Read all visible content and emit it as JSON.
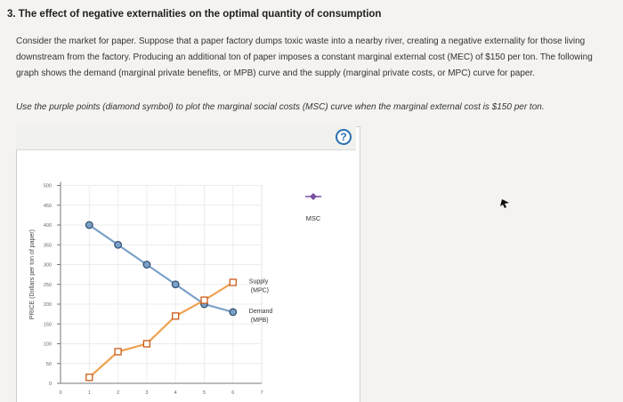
{
  "question": {
    "title": "3. The effect of negative externalities on the optimal quantity of consumption",
    "paragraph": "Consider the market for paper. Suppose that a paper factory dumps toxic waste into a nearby river, creating a negative externality for those living downstream from the factory. Producing an additional ton of paper imposes a constant marginal external cost (MEC) of $150 per ton. The following graph shows the demand (marginal private benefits, or MPB) curve and the supply (marginal private costs, or MPC) curve for paper.",
    "instruction": "Use the purple points (diamond symbol) to plot the marginal social costs (MSC) curve when the marginal external cost is $150 per ton."
  },
  "help_label": "?",
  "tool": {
    "msc_label": "MSC"
  },
  "colors": {
    "demand": "#7aa0c8",
    "supply": "#f0a050",
    "msc": "#7a4fa0",
    "axis": "#777777"
  },
  "chart_data": {
    "type": "line",
    "ylabel": "PRICE (Dollars per ton of paper)",
    "xlabel": "",
    "xlim": [
      0,
      7
    ],
    "ylim": [
      0,
      500
    ],
    "x_ticks": [
      "0",
      "1",
      "2",
      "3",
      "4",
      "5",
      "6",
      "7"
    ],
    "y_ticks": [
      "0",
      "50",
      "100",
      "150",
      "200",
      "250",
      "300",
      "350",
      "400",
      "450",
      "500"
    ],
    "series": [
      {
        "name": "Demand (MPB)",
        "label_line1": "Demand",
        "label_line2": "(MPB)",
        "marker": "circle",
        "x": [
          1,
          2,
          3,
          4,
          5,
          6
        ],
        "y": [
          400,
          350,
          300,
          250,
          200,
          180
        ]
      },
      {
        "name": "Supply (MPC)",
        "label_line1": "Supply",
        "label_line2": "(MPC)",
        "marker": "square",
        "x": [
          1,
          2,
          3,
          4,
          5,
          6
        ],
        "y": [
          15,
          80,
          100,
          170,
          210,
          255
        ]
      }
    ]
  }
}
